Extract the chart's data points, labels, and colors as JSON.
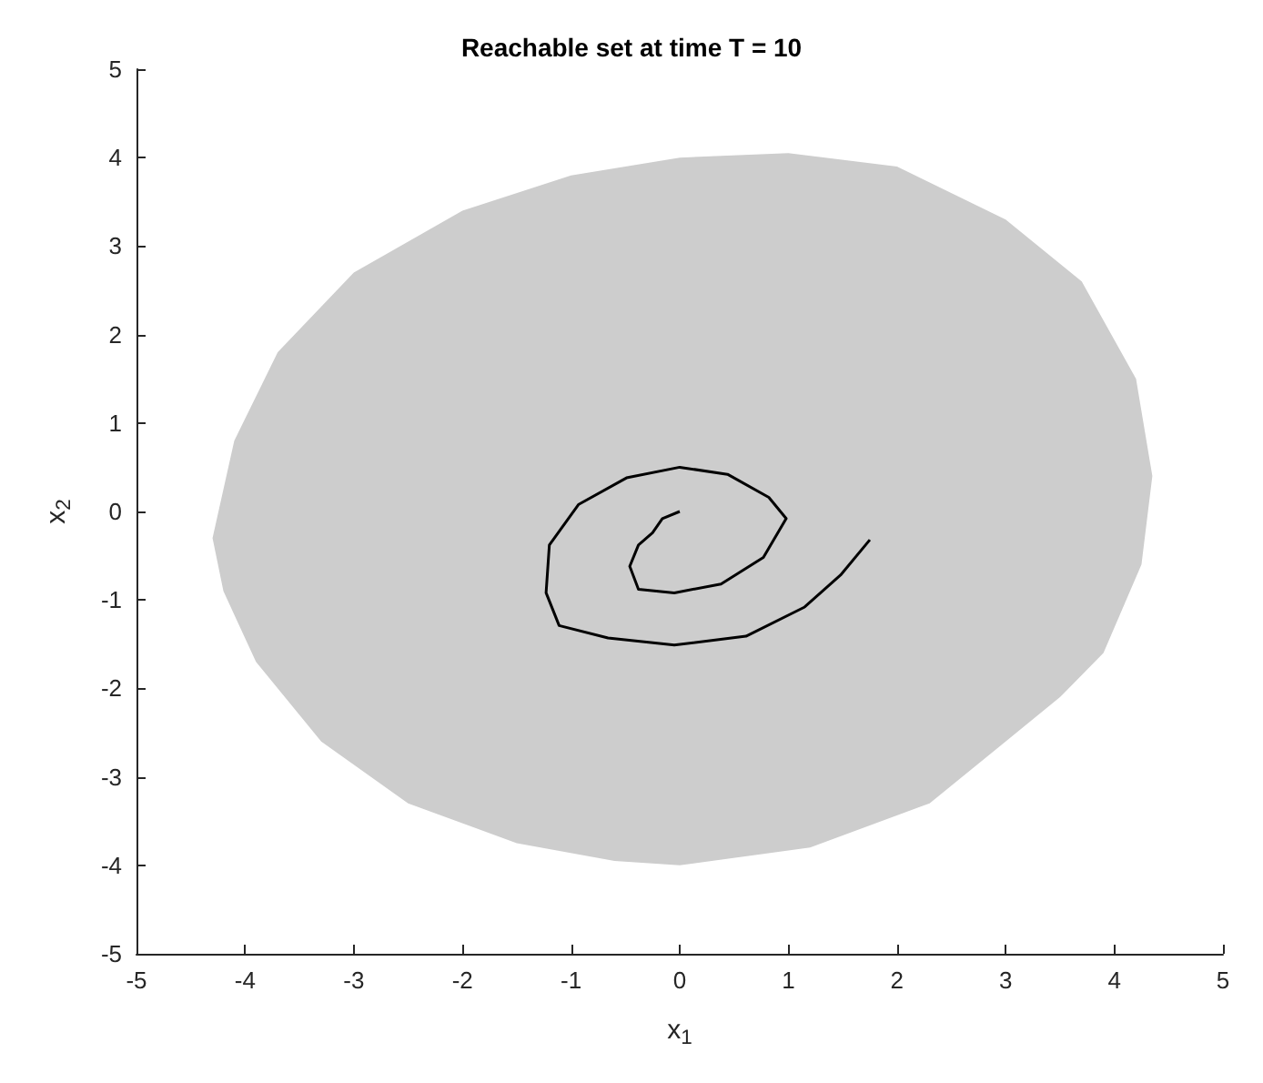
{
  "chart_data": {
    "type": "line",
    "title": "Reachable set at time T = 10",
    "xlabel": "x$_{1}$",
    "ylabel": "x$_{2}$",
    "xlim": [
      -5,
      5
    ],
    "ylim": [
      -5,
      5
    ],
    "xticks": [
      -5,
      -4,
      -3,
      -2,
      -1,
      0,
      1,
      2,
      3,
      4,
      5
    ],
    "yticks": [
      -5,
      -4,
      -3,
      -2,
      -1,
      0,
      1,
      2,
      3,
      4,
      5
    ],
    "series": [
      {
        "type": "area",
        "color": "#cdcdcd",
        "x": [
          -4.3,
          -4.1,
          -3.7,
          -3.0,
          -2.0,
          -1.0,
          0,
          1.0,
          2.0,
          3.0,
          3.7,
          4.2,
          4.35,
          4.25,
          3.9,
          3.5,
          3.0,
          2.3,
          1.2,
          0,
          -0.6,
          -1.5,
          -2.5,
          -3.3,
          -3.9,
          -4.2
        ],
        "values": [
          -0.3,
          0.8,
          1.8,
          2.7,
          3.4,
          3.8,
          4.0,
          4.05,
          3.9,
          3.3,
          2.6,
          1.5,
          0.4,
          -0.6,
          -1.6,
          -2.1,
          -2.6,
          -3.3,
          -3.8,
          -4.0,
          -3.95,
          -3.75,
          -3.3,
          -2.6,
          -1.7,
          -0.9
        ]
      },
      {
        "color": "#000000",
        "x": [
          0,
          -0.16,
          -0.25,
          -0.38,
          -0.46,
          -0.38,
          -0.05,
          0.38,
          0.77,
          0.98,
          0.82,
          0.44,
          0,
          -0.49,
          -0.93,
          -1.2,
          -1.23,
          -1.11,
          -0.66,
          -0.05,
          0.61,
          1.15,
          1.48,
          1.75
        ],
        "values": [
          0,
          -0.08,
          -0.24,
          -0.38,
          -0.62,
          -0.88,
          -0.92,
          -0.82,
          -0.52,
          -0.08,
          0.16,
          0.42,
          0.5,
          0.38,
          0.08,
          -0.38,
          -0.92,
          -1.29,
          -1.43,
          -1.51,
          -1.41,
          -1.08,
          -0.72,
          -0.32
        ]
      }
    ]
  }
}
